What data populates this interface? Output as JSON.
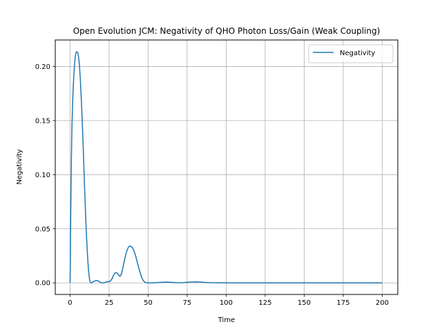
{
  "chart_data": {
    "type": "line",
    "title": "Open Evolution JCM: Negativity of QHO Photon Loss/Gain (Weak Coupling)",
    "xlabel": "Time",
    "ylabel": "Negativity",
    "xlim": [
      -9.5,
      210
    ],
    "ylim": [
      -0.0107,
      0.2245
    ],
    "grid": true,
    "legend_position": "upper right",
    "xticks": [
      0,
      25,
      50,
      75,
      100,
      125,
      150,
      175,
      200
    ],
    "xtick_labels": [
      "0",
      "25",
      "50",
      "75",
      "100",
      "125",
      "150",
      "175",
      "200"
    ],
    "yticks": [
      0.0,
      0.05,
      0.1,
      0.15,
      0.2
    ],
    "ytick_labels": [
      "0.00",
      "0.05",
      "0.10",
      "0.15",
      "0.20"
    ],
    "colors": {
      "line": "#1f77b4",
      "grid": "#b0b0b0",
      "axes": "#000000"
    },
    "series": [
      {
        "name": "Negativity",
        "x": [
          0,
          0.4,
          0.8,
          1.2,
          1.6,
          2,
          2.5,
          3,
          3.5,
          4,
          4.5,
          5,
          5.5,
          6,
          6.5,
          7,
          7.5,
          8,
          8.5,
          9,
          9.5,
          10,
          10.5,
          11,
          11.5,
          12,
          12.5,
          13,
          13.5,
          14,
          14.5,
          15,
          16,
          17,
          18,
          19,
          20,
          21,
          22,
          23,
          24,
          25,
          26,
          27,
          28,
          29,
          30,
          31,
          32,
          33,
          34,
          35,
          36,
          37,
          38,
          39,
          40,
          41,
          42,
          43,
          44,
          45,
          46,
          47,
          48,
          49,
          50,
          51,
          52,
          54,
          56,
          58,
          60,
          62,
          64,
          66,
          68,
          70,
          72,
          75,
          78,
          81,
          84,
          87,
          90,
          95,
          100,
          120,
          140,
          160,
          180,
          200
        ],
        "y": [
          0.0,
          0.06,
          0.11,
          0.145,
          0.165,
          0.18,
          0.194,
          0.204,
          0.211,
          0.2135,
          0.2135,
          0.2125,
          0.208,
          0.201,
          0.19,
          0.176,
          0.16,
          0.142,
          0.122,
          0.101,
          0.08,
          0.061,
          0.044,
          0.03,
          0.018,
          0.009,
          0.003,
          0.0005,
          0.0,
          0.0002,
          0.0008,
          0.0012,
          0.0018,
          0.0022,
          0.0018,
          0.0008,
          0.0002,
          0.0,
          0.0002,
          0.0008,
          0.0012,
          0.001,
          0.002,
          0.004,
          0.0075,
          0.0095,
          0.0092,
          0.0075,
          0.006,
          0.0085,
          0.015,
          0.022,
          0.028,
          0.032,
          0.034,
          0.0338,
          0.0325,
          0.0295,
          0.025,
          0.0195,
          0.014,
          0.009,
          0.0045,
          0.002,
          0.0005,
          0.0001,
          0.0,
          0.0,
          0.0,
          0.0001,
          0.0003,
          0.0005,
          0.0006,
          0.0007,
          0.0006,
          0.0004,
          0.0002,
          0.0001,
          0.0002,
          0.0005,
          0.0008,
          0.0009,
          0.0007,
          0.0004,
          0.0002,
          0.0001,
          0.0,
          0.0,
          0.0,
          0.0,
          0.0,
          0.0
        ]
      }
    ]
  }
}
